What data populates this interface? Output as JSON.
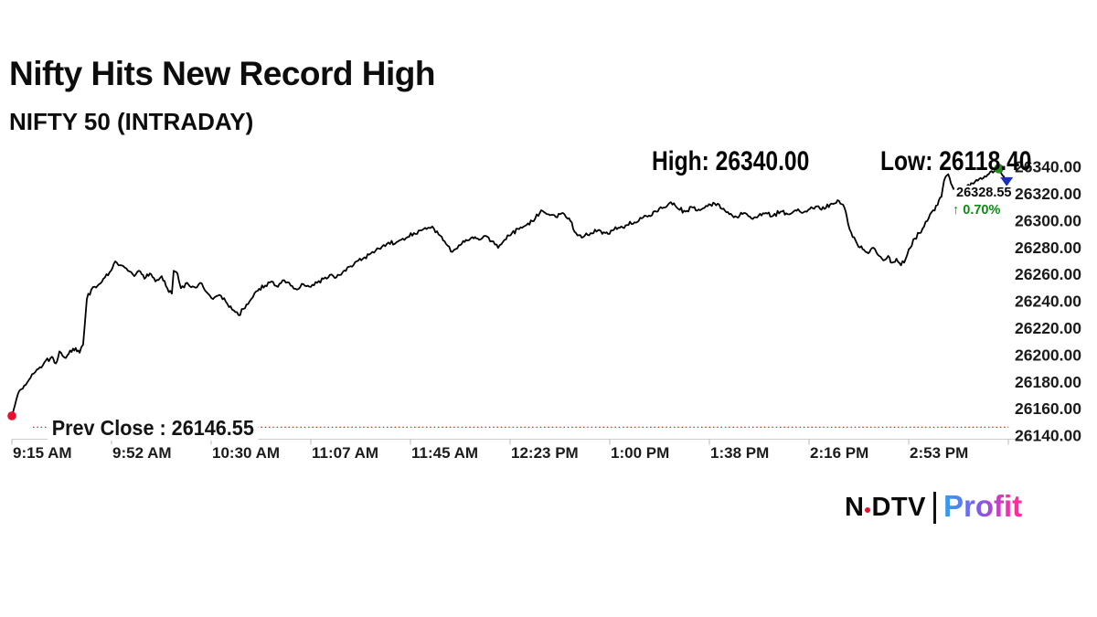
{
  "page": {
    "background": "#ffffff"
  },
  "header": {
    "title": "Nifty Hits New Record High",
    "subtitle": "NIFTY 50 (INTRADAY)"
  },
  "stats": {
    "high_label": "High: 26340.00",
    "low_label": "Low: 26118.40"
  },
  "quote": {
    "last_price": "26328.55",
    "change_percent": "↑ 0.70%",
    "change_color": "#0e8a16"
  },
  "prev_close": {
    "label": "Prev Close : 26146.55",
    "value": 26146.55
  },
  "branding": {
    "ndtv_n": "N",
    "ndtv_dtv": "DTV",
    "profit": "Profit",
    "dot_color": "#e8112d",
    "profit_gradient": [
      "#2f9ff2",
      "#8a55e6",
      "#ff2d9c"
    ]
  },
  "chart_data": {
    "type": "line",
    "title": "NIFTY 50 (INTRADAY)",
    "xlabel": "",
    "ylabel": "",
    "x_ticks": [
      "9:15 AM",
      "9:52 AM",
      "10:30 AM",
      "11:07 AM",
      "11:45 AM",
      "12:23 PM",
      "1:00 PM",
      "1:38 PM",
      "2:16 PM",
      "2:53 PM"
    ],
    "x_tick_interval_minutes": 37.5,
    "xlim_minutes": [
      0,
      375
    ],
    "y_ticks": [
      "26340.00",
      "26320.00",
      "26300.00",
      "26280.00",
      "26260.00",
      "26240.00",
      "26220.00",
      "26200.00",
      "26180.00",
      "26160.00",
      "26140.00"
    ],
    "ylim": [
      26140,
      26340
    ],
    "grid": false,
    "high": 26340.0,
    "low": 26118.4,
    "last": 26328.55,
    "change_percent": 0.7,
    "prev_close": 26146.55,
    "line_color": "#000000",
    "prev_close_line_color": "#ee2222",
    "open_marker_color": "#e8112d",
    "high_marker_color": "#22921c",
    "end_marker_color": "#1b2ec0",
    "series": [
      {
        "name": "NIFTY 50",
        "points": [
          [
            0,
            26155
          ],
          [
            2.4,
            26172
          ],
          [
            5.2,
            26178
          ],
          [
            7.6,
            26186
          ],
          [
            10,
            26190
          ],
          [
            12.7,
            26196
          ],
          [
            15.1,
            26199
          ],
          [
            16.5,
            26194
          ],
          [
            17.9,
            26203
          ],
          [
            20.3,
            26198
          ],
          [
            23,
            26205
          ],
          [
            25.5,
            26202
          ],
          [
            26.8,
            26208
          ],
          [
            28.2,
            26242
          ],
          [
            29.9,
            26249
          ],
          [
            32.3,
            26252
          ],
          [
            34.4,
            26257
          ],
          [
            36.8,
            26262
          ],
          [
            38.9,
            26270
          ],
          [
            41.3,
            26267
          ],
          [
            43.7,
            26263
          ],
          [
            46.1,
            26259
          ],
          [
            47.8,
            26263
          ],
          [
            49.9,
            26257
          ],
          [
            51.9,
            26261
          ],
          [
            54,
            26255
          ],
          [
            56.4,
            26259
          ],
          [
            58.5,
            26250
          ],
          [
            60.2,
            26246
          ],
          [
            60.9,
            26263
          ],
          [
            62.3,
            26261
          ],
          [
            63.6,
            26250
          ],
          [
            66,
            26254
          ],
          [
            68.5,
            26251
          ],
          [
            70.9,
            26254
          ],
          [
            73.3,
            26247
          ],
          [
            75.7,
            26242
          ],
          [
            78.1,
            26245
          ],
          [
            80.5,
            26240
          ],
          [
            82.9,
            26234
          ],
          [
            85.3,
            26230
          ],
          [
            87.7,
            26235
          ],
          [
            90.1,
            26242
          ],
          [
            92.5,
            26248
          ],
          [
            95.3,
            26252
          ],
          [
            97.7,
            26255
          ],
          [
            100.1,
            26251
          ],
          [
            102.5,
            26256
          ],
          [
            104.9,
            26252
          ],
          [
            107.3,
            26249
          ],
          [
            109.7,
            26253
          ],
          [
            112.5,
            26251
          ],
          [
            114.9,
            26254
          ],
          [
            117.3,
            26257
          ],
          [
            119.7,
            26260
          ],
          [
            122.1,
            26258
          ],
          [
            124.5,
            26262
          ],
          [
            126.9,
            26266
          ],
          [
            129.7,
            26270
          ],
          [
            132.1,
            26272
          ],
          [
            134.5,
            26275
          ],
          [
            136.9,
            26278
          ],
          [
            139.3,
            26281
          ],
          [
            141.7,
            26284
          ],
          [
            144.1,
            26283
          ],
          [
            146.5,
            26286
          ],
          [
            148.9,
            26288
          ],
          [
            151.3,
            26291
          ],
          [
            153.7,
            26293
          ],
          [
            156.1,
            26294
          ],
          [
            158.2,
            26296
          ],
          [
            160.6,
            26290
          ],
          [
            163.4,
            26283
          ],
          [
            165.8,
            26277
          ],
          [
            168.2,
            26282
          ],
          [
            170.9,
            26286
          ],
          [
            173.3,
            26288
          ],
          [
            175.8,
            26286
          ],
          [
            178.2,
            26289
          ],
          [
            180.6,
            26285
          ],
          [
            183,
            26280
          ],
          [
            185.4,
            26286
          ],
          [
            188.2,
            26291
          ],
          [
            190.9,
            26294
          ],
          [
            193.7,
            26297
          ],
          [
            196.4,
            26300
          ],
          [
            199.2,
            26308
          ],
          [
            201.9,
            26305
          ],
          [
            204.7,
            26303
          ],
          [
            207.4,
            26306
          ],
          [
            210.2,
            26300
          ],
          [
            212.3,
            26291
          ],
          [
            215,
            26288
          ],
          [
            217.8,
            26291
          ],
          [
            220.5,
            26293
          ],
          [
            223.3,
            26291
          ],
          [
            226,
            26293
          ],
          [
            228.8,
            26295
          ],
          [
            231.5,
            26297
          ],
          [
            234.3,
            26299
          ],
          [
            237,
            26302
          ],
          [
            239.8,
            26304
          ],
          [
            242.5,
            26307
          ],
          [
            245.3,
            26310
          ],
          [
            248,
            26314
          ],
          [
            250.8,
            26309
          ],
          [
            253.5,
            26307
          ],
          [
            256.3,
            26310
          ],
          [
            259,
            26308
          ],
          [
            261.8,
            26311
          ],
          [
            264.5,
            26313
          ],
          [
            267.3,
            26309
          ],
          [
            270,
            26305
          ],
          [
            272.8,
            26303
          ],
          [
            275.5,
            26306
          ],
          [
            278.3,
            26302
          ],
          [
            281,
            26304
          ],
          [
            283.8,
            26306
          ],
          [
            286.5,
            26304
          ],
          [
            289.3,
            26307
          ],
          [
            292,
            26305
          ],
          [
            294.8,
            26308
          ],
          [
            297.5,
            26306
          ],
          [
            300.3,
            26309
          ],
          [
            303,
            26311
          ],
          [
            305.8,
            26309
          ],
          [
            308.5,
            26313
          ],
          [
            311.3,
            26315
          ],
          [
            313.3,
            26310
          ],
          [
            314.7,
            26298
          ],
          [
            316.4,
            26288
          ],
          [
            318.1,
            26283
          ],
          [
            320.2,
            26279
          ],
          [
            322.3,
            26276
          ],
          [
            324.3,
            26280
          ],
          [
            326.4,
            26274
          ],
          [
            328.5,
            26271
          ],
          [
            329.8,
            26274
          ],
          [
            331.2,
            26269
          ],
          [
            332.9,
            26272
          ],
          [
            334.6,
            26267
          ],
          [
            336.4,
            26272
          ],
          [
            338.1,
            26280
          ],
          [
            339.8,
            26287
          ],
          [
            341.5,
            26291
          ],
          [
            343.3,
            26296
          ],
          [
            345,
            26302
          ],
          [
            346.7,
            26308
          ],
          [
            348.4,
            26312
          ],
          [
            349.8,
            26318
          ],
          [
            350.8,
            26330
          ],
          [
            351.9,
            26334
          ],
          [
            352.9,
            26332
          ],
          [
            353.9,
            26326
          ],
          [
            355.3,
            26322
          ],
          [
            357.4,
            26324
          ],
          [
            359.4,
            26326
          ],
          [
            361.5,
            26328
          ],
          [
            363.5,
            26330
          ],
          [
            365.6,
            26332
          ],
          [
            367.7,
            26335
          ],
          [
            369.7,
            26337
          ],
          [
            371.4,
            26339
          ],
          [
            372.8,
            26334
          ],
          [
            373.8,
            26331
          ],
          [
            374.9,
            26328.55
          ]
        ]
      }
    ]
  }
}
